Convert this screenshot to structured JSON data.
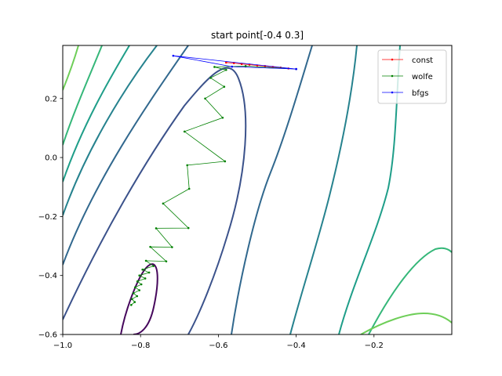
{
  "chart_data": {
    "type": "line",
    "title": "start point[-0.4  0.3]",
    "xlabel": "",
    "ylabel": "",
    "xlim": [
      -1.0,
      -0.0
    ],
    "ylim": [
      -0.6,
      0.38
    ],
    "x_ticks": [
      -1.0,
      -0.8,
      -0.6,
      -0.4,
      -0.2
    ],
    "x_tick_labels": [
      "−1.0",
      "−0.8",
      "−0.6",
      "−0.4",
      "−0.2"
    ],
    "y_ticks": [
      -0.6,
      -0.4,
      -0.2,
      0.0,
      0.2
    ],
    "y_tick_labels": [
      "−0.6",
      "−0.4",
      "−0.2",
      "0.0",
      "0.2"
    ],
    "grid": false,
    "legend_position": "top-right",
    "series": [
      {
        "name": "const",
        "color": "#ff0000",
        "points": [
          [
            -0.4,
            0.3
          ],
          [
            -0.42,
            0.302
          ],
          [
            -0.44,
            0.305
          ],
          [
            -0.46,
            0.307
          ],
          [
            -0.48,
            0.31
          ],
          [
            -0.5,
            0.312
          ],
          [
            -0.52,
            0.315
          ],
          [
            -0.54,
            0.317
          ],
          [
            -0.56,
            0.32
          ],
          [
            -0.58,
            0.322
          ]
        ]
      },
      {
        "name": "wolfe",
        "color": "#008000",
        "points": [
          [
            -0.4,
            0.3
          ],
          [
            -0.53,
            0.31
          ],
          [
            -0.61,
            0.307
          ],
          [
            -0.58,
            0.297
          ],
          [
            -0.62,
            0.27
          ],
          [
            -0.585,
            0.24
          ],
          [
            -0.634,
            0.2
          ],
          [
            -0.589,
            0.135
          ],
          [
            -0.687,
            0.088
          ],
          [
            -0.583,
            -0.013
          ],
          [
            -0.68,
            -0.026
          ],
          [
            -0.675,
            -0.106
          ],
          [
            -0.742,
            -0.156
          ],
          [
            -0.677,
            -0.239
          ],
          [
            -0.76,
            -0.24
          ],
          [
            -0.719,
            -0.304
          ],
          [
            -0.775,
            -0.303
          ],
          [
            -0.734,
            -0.352
          ],
          [
            -0.786,
            -0.35
          ],
          [
            -0.767,
            -0.368
          ],
          [
            -0.795,
            -0.38
          ],
          [
            -0.778,
            -0.39
          ],
          [
            -0.803,
            -0.4
          ],
          [
            -0.788,
            -0.41
          ],
          [
            -0.808,
            -0.42
          ],
          [
            -0.798,
            -0.43
          ],
          [
            -0.814,
            -0.44
          ],
          [
            -0.803,
            -0.45
          ],
          [
            -0.818,
            -0.46
          ],
          [
            -0.809,
            -0.47
          ],
          [
            -0.822,
            -0.48
          ],
          [
            -0.815,
            -0.49
          ],
          [
            -0.824,
            -0.5
          ]
        ]
      },
      {
        "name": "bfgs",
        "color": "#0000ff",
        "points": [
          [
            -0.4,
            0.3
          ],
          [
            -0.716,
            0.345
          ],
          [
            -0.565,
            0.308
          ],
          [
            -0.4,
            0.3
          ]
        ]
      }
    ]
  }
}
